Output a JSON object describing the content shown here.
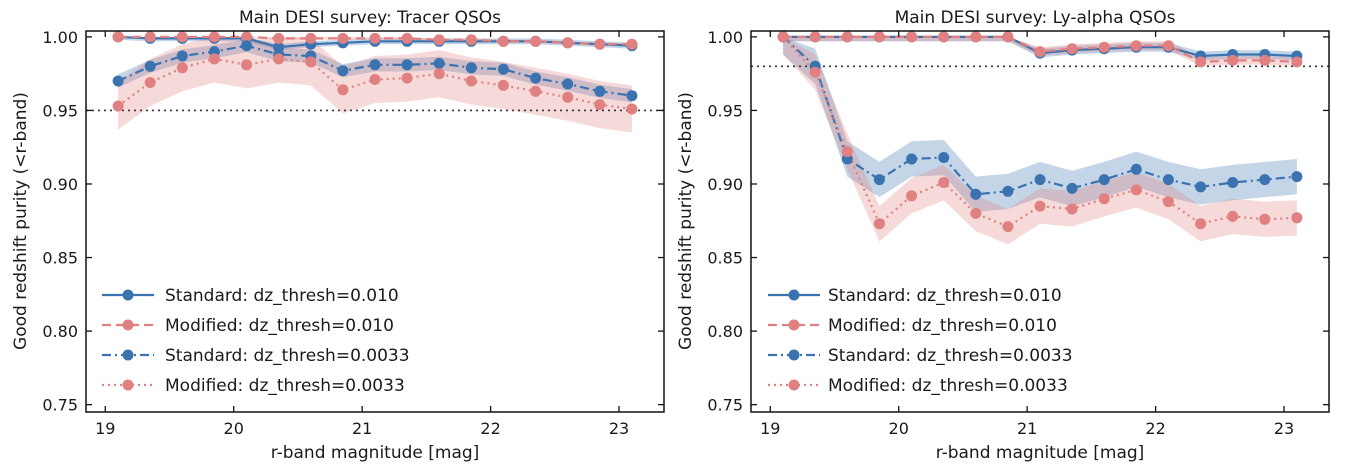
{
  "colors": {
    "standard": "#3b73b0",
    "modified": "#e08080"
  },
  "legend_labels": [
    "Standard: dz_thresh=0.010",
    "Modified: dz_thresh=0.010",
    "Standard: dz_thresh=0.0033",
    "Modified: dz_thresh=0.0033"
  ],
  "chart_data": [
    {
      "type": "line",
      "title": "Main DESI survey: Tracer QSOs",
      "xlabel": "r-band magnitude [mag]",
      "ylabel": "Good redshift purity (<r-band)",
      "xlim": [
        18.85,
        23.35
      ],
      "ylim": [
        0.745,
        1.004
      ],
      "xticks": [
        19,
        20,
        21,
        22,
        23
      ],
      "xtick_labels": [
        "19",
        "20",
        "21",
        "22",
        "23"
      ],
      "yticks": [
        0.75,
        0.8,
        0.85,
        0.9,
        0.95,
        1.0
      ],
      "ytick_labels": [
        "0.75",
        "0.80",
        "0.85",
        "0.90",
        "0.95",
        "1.00"
      ],
      "reference_line": 0.95,
      "grid": false,
      "legend_position": "lower-left",
      "x": [
        19.1,
        19.35,
        19.6,
        19.85,
        20.1,
        20.35,
        20.6,
        20.85,
        21.1,
        21.35,
        21.6,
        21.85,
        22.1,
        22.35,
        22.6,
        22.85,
        23.1
      ],
      "series": [
        {
          "name": "Standard: dz_thresh=0.010",
          "color_key": "standard",
          "dash": "solid",
          "values": [
            1.0,
            0.999,
            0.999,
            0.999,
            0.999,
            0.993,
            0.995,
            0.996,
            0.997,
            0.997,
            0.997,
            0.997,
            0.997,
            0.997,
            0.996,
            0.995,
            0.994
          ],
          "band": 0.002
        },
        {
          "name": "Modified: dz_thresh=0.010",
          "color_key": "modified",
          "dash": "dashed",
          "values": [
            1.0,
            1.0,
            1.0,
            1.0,
            1.0,
            0.999,
            0.999,
            0.999,
            0.999,
            0.999,
            0.998,
            0.998,
            0.997,
            0.997,
            0.996,
            0.995,
            0.995
          ],
          "band": 0.001
        },
        {
          "name": "Standard: dz_thresh=0.0033",
          "color_key": "standard",
          "dash": "dashdot",
          "values": [
            0.97,
            0.98,
            0.987,
            0.99,
            0.994,
            0.988,
            0.987,
            0.977,
            0.981,
            0.981,
            0.982,
            0.979,
            0.978,
            0.972,
            0.968,
            0.963,
            0.96
          ],
          "band": 0.0045
        },
        {
          "name": "Modified: dz_thresh=0.0033",
          "color_key": "modified",
          "dash": "dotted",
          "values": [
            0.953,
            0.969,
            0.979,
            0.985,
            0.981,
            0.985,
            0.983,
            0.964,
            0.971,
            0.972,
            0.975,
            0.97,
            0.967,
            0.963,
            0.959,
            0.954,
            0.951
          ],
          "band": 0.016
        }
      ]
    },
    {
      "type": "line",
      "title": "Main DESI survey: Ly-alpha QSOs",
      "xlabel": "r-band magnitude [mag]",
      "ylabel": "Good redshift purity (<r-band)",
      "xlim": [
        18.85,
        23.35
      ],
      "ylim": [
        0.745,
        1.004
      ],
      "xticks": [
        19,
        20,
        21,
        22,
        23
      ],
      "xtick_labels": [
        "19",
        "20",
        "21",
        "22",
        "23"
      ],
      "yticks": [
        0.75,
        0.8,
        0.85,
        0.9,
        0.95,
        1.0
      ],
      "ytick_labels": [
        "0.75",
        "0.80",
        "0.85",
        "0.90",
        "0.95",
        "1.00"
      ],
      "reference_line": 0.98,
      "grid": false,
      "legend_position": "lower-left",
      "x": [
        19.1,
        19.35,
        19.6,
        19.85,
        20.1,
        20.35,
        20.6,
        20.85,
        21.1,
        21.35,
        21.6,
        21.85,
        22.1,
        22.35,
        22.6,
        22.85,
        23.1
      ],
      "series": [
        {
          "name": "Standard: dz_thresh=0.010",
          "color_key": "standard",
          "dash": "solid",
          "values": [
            1.0,
            1.0,
            1.0,
            1.0,
            1.0,
            1.0,
            1.0,
            1.0,
            0.989,
            0.991,
            0.992,
            0.993,
            0.993,
            0.987,
            0.988,
            0.988,
            0.987
          ],
          "band": 0.003
        },
        {
          "name": "Modified: dz_thresh=0.010",
          "color_key": "modified",
          "dash": "dashed",
          "values": [
            1.0,
            1.0,
            1.0,
            1.0,
            1.0,
            1.0,
            1.0,
            1.0,
            0.99,
            0.992,
            0.993,
            0.994,
            0.994,
            0.983,
            0.984,
            0.984,
            0.983
          ],
          "band": 0.003
        },
        {
          "name": "Standard: dz_thresh=0.0033",
          "color_key": "standard",
          "dash": "dashdot",
          "values": [
            1.0,
            0.98,
            0.917,
            0.903,
            0.917,
            0.918,
            0.893,
            0.895,
            0.903,
            0.897,
            0.903,
            0.91,
            0.903,
            0.898,
            0.901,
            0.903,
            0.905
          ],
          "band": 0.012
        },
        {
          "name": "Modified: dz_thresh=0.0033",
          "color_key": "modified",
          "dash": "dotted",
          "values": [
            1.0,
            0.976,
            0.922,
            0.873,
            0.892,
            0.901,
            0.88,
            0.871,
            0.885,
            0.883,
            0.89,
            0.896,
            0.888,
            0.873,
            0.878,
            0.876,
            0.877
          ],
          "band": 0.012
        }
      ]
    }
  ]
}
